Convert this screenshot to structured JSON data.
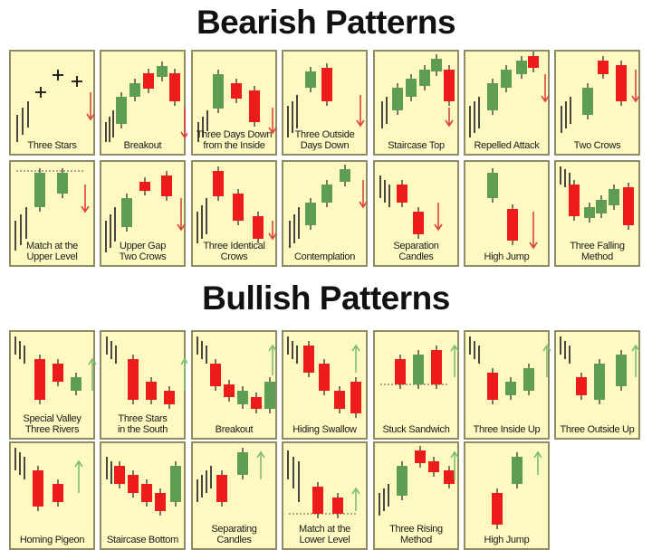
{
  "bearish": {
    "title": "Bearish Patterns",
    "tiles": [
      {
        "label": "Three Stars"
      },
      {
        "label": "Breakout"
      },
      {
        "label": "Three Days Down\nfrom the Inside"
      },
      {
        "label": "Three Outside\nDays Down"
      },
      {
        "label": "Staircase Top"
      },
      {
        "label": "Repelled Attack"
      },
      {
        "label": "Two Crows"
      },
      {
        "label": "Match at the\nUpper Level"
      },
      {
        "label": "Upper Gap\nTwo Crows"
      },
      {
        "label": "Three Identical\nCrows"
      },
      {
        "label": "Contemplation"
      },
      {
        "label": "Separation Candles"
      },
      {
        "label": "High Jump"
      },
      {
        "label": "Three Falling\nMethod"
      }
    ]
  },
  "bullish": {
    "title": "Bullish Patterns",
    "tiles": [
      {
        "label": "Special Valley\nThree Rivers"
      },
      {
        "label": "Three Stars\nin the South"
      },
      {
        "label": "Breakout"
      },
      {
        "label": "Hiding Swallow"
      },
      {
        "label": "Stuck Sandwich"
      },
      {
        "label": "Three Inside Up"
      },
      {
        "label": "Three Outside Up"
      },
      {
        "label": "Homing Pigeon"
      },
      {
        "label": "Staircase Bottom"
      },
      {
        "label": "Separating Candles"
      },
      {
        "label": "Match at the\nLower Level"
      },
      {
        "label": "Three Rising\nMethod"
      },
      {
        "label": "High Jump"
      }
    ]
  },
  "colors": {
    "bullish_candle": "#5e9e52",
    "bearish_candle": "#ee1b1b",
    "wick": "#333333",
    "down_arrow": "#d9453d",
    "up_arrow": "#7fbf70",
    "tile_bg": "#fdf9c0",
    "tile_border": "#8e8c62"
  }
}
